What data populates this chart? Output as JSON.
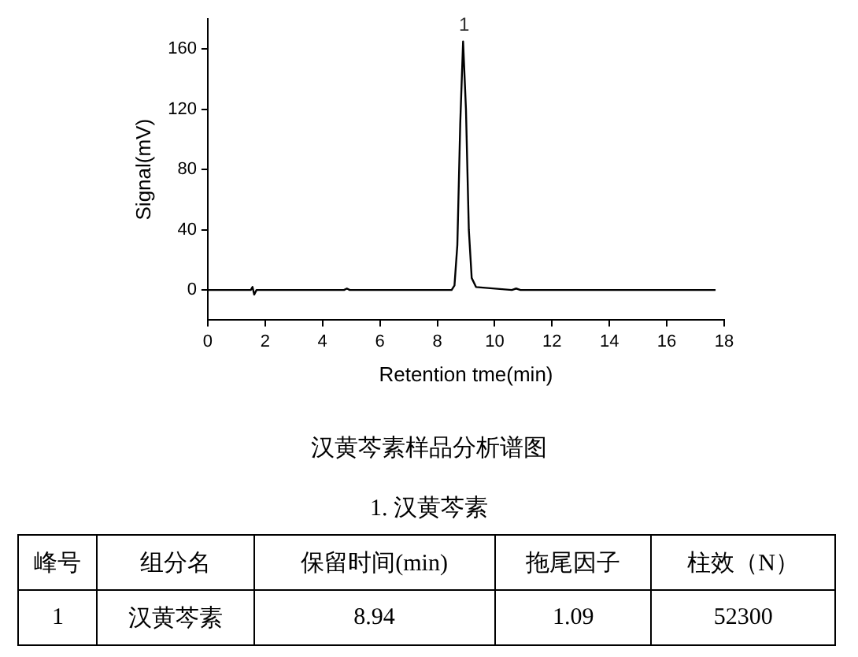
{
  "chart_data": {
    "type": "line",
    "title": "汉黄芩素样品分析谱图",
    "subtitle": "1. 汉黄芩素",
    "xlabel": "Retention tme(min)",
    "ylabel": "Signal(mV)",
    "x": [
      0,
      1.5,
      1.56,
      1.62,
      1.7,
      4.75,
      4.85,
      4.95,
      8.5,
      8.6,
      8.7,
      8.8,
      8.9,
      9.0,
      9.1,
      9.2,
      9.35,
      10.6,
      10.75,
      10.9,
      17.7
    ],
    "series": [
      {
        "color": "#000000",
        "values": [
          0,
          0,
          2,
          -3,
          0,
          0,
          1,
          0,
          0,
          3,
          30,
          110,
          165,
          120,
          40,
          8,
          2,
          0,
          1,
          0,
          0
        ]
      }
    ],
    "xlim": [
      0,
      18
    ],
    "xticks": [
      0,
      2,
      4,
      6,
      8,
      10,
      12,
      14,
      16,
      18
    ],
    "ylim": [
      -20,
      180
    ],
    "yticks": [
      0,
      40,
      80,
      120,
      160
    ],
    "grid": false,
    "legend": false,
    "marker": "none",
    "line_style": "solid",
    "annotations": [
      {
        "text": "1",
        "x": 8.94,
        "y": 165
      },
      "峰号",
      "组分名",
      "保留时间(min)",
      "拖尾因子",
      "柱效（N）",
      "1",
      "汉黄芩素",
      "8.94",
      "1.09",
      "52300"
    ]
  }
}
